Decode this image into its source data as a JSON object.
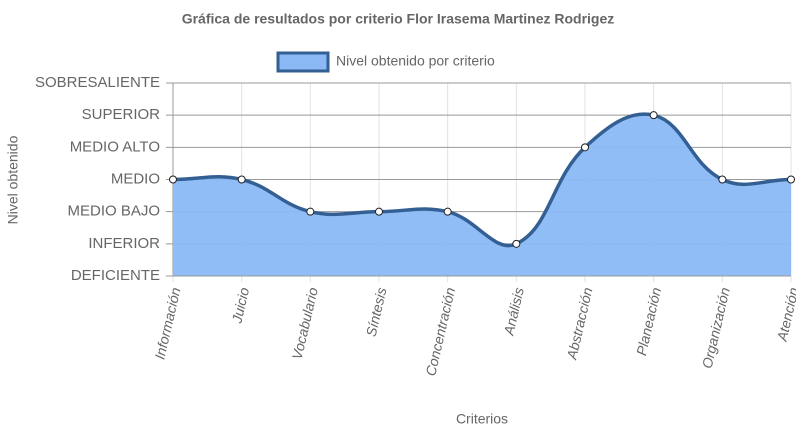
{
  "chart_data": {
    "type": "line",
    "title": "Gráfica de resultados por criterio Flor Irasema Martinez Rodrigez",
    "x_label": "Criterios",
    "y_label": "Nivel obtenido",
    "categories": [
      "Información",
      "Juicio",
      "Vocabulario",
      "Síntesis",
      "Concentración",
      "Análisis",
      "Abstracción",
      "Planeación",
      "Organización",
      "Atención"
    ],
    "series": [
      {
        "name": "Nivel obtenido por criterio",
        "color": "#335f93",
        "fill": "#8ab9f5",
        "values": [
          3,
          3,
          2,
          2,
          2,
          1,
          4,
          5,
          3,
          3
        ]
      }
    ],
    "ylim": [
      0,
      6
    ],
    "yticks": [
      {
        "value": 0,
        "label": "DEFICIENTE"
      },
      {
        "value": 1,
        "label": "INFERIOR"
      },
      {
        "value": 2,
        "label": "MEDIO BAJO"
      },
      {
        "value": 3,
        "label": "MEDIO"
      },
      {
        "value": 4,
        "label": "MEDIO ALTO"
      },
      {
        "value": 5,
        "label": "SUPERIOR"
      },
      {
        "value": 6,
        "label": "SOBRESALIENTE"
      }
    ],
    "grid": true,
    "legend": "top"
  }
}
